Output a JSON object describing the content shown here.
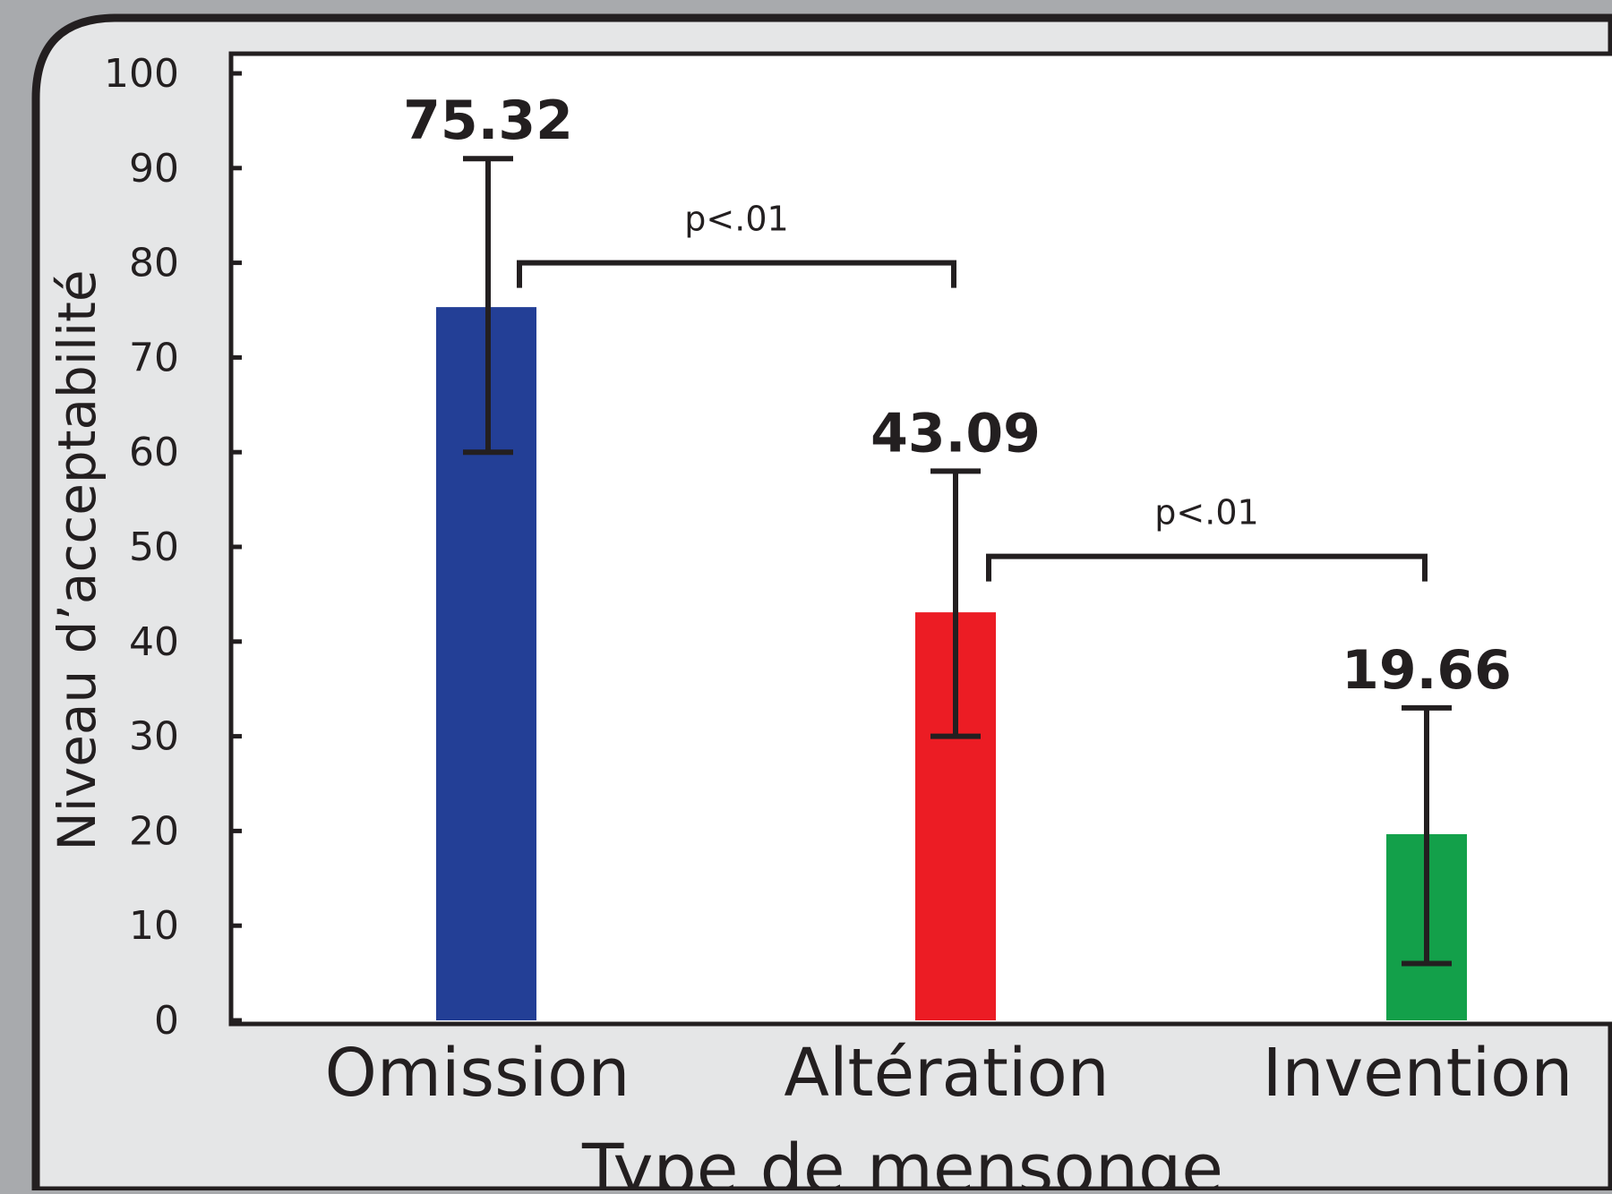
{
  "chart_data": {
    "type": "bar",
    "title": "",
    "xlabel": "Type de mensonge",
    "ylabel": "Niveau d’acceptabilité",
    "categories": [
      "Omission",
      "Altération",
      "Invention"
    ],
    "values": [
      75.32,
      43.09,
      19.66
    ],
    "value_labels": [
      "75.32",
      "43.09",
      "19.66"
    ],
    "error_bars": [
      {
        "low": 60,
        "high": 91
      },
      {
        "low": 30,
        "high": 58
      },
      {
        "low": 6,
        "high": 33
      }
    ],
    "colors": [
      "#233f96",
      "#ec1c24",
      "#13a04a"
    ],
    "ylim": [
      0,
      100
    ],
    "yticks": [
      0,
      10,
      20,
      30,
      40,
      50,
      60,
      70,
      80,
      90,
      100
    ],
    "grid": false,
    "significance": [
      {
        "from": 0,
        "to": 1,
        "label": "p<.01",
        "level": 80
      },
      {
        "from": 1,
        "to": 2,
        "label": "p<.01",
        "level": 49
      }
    ]
  }
}
